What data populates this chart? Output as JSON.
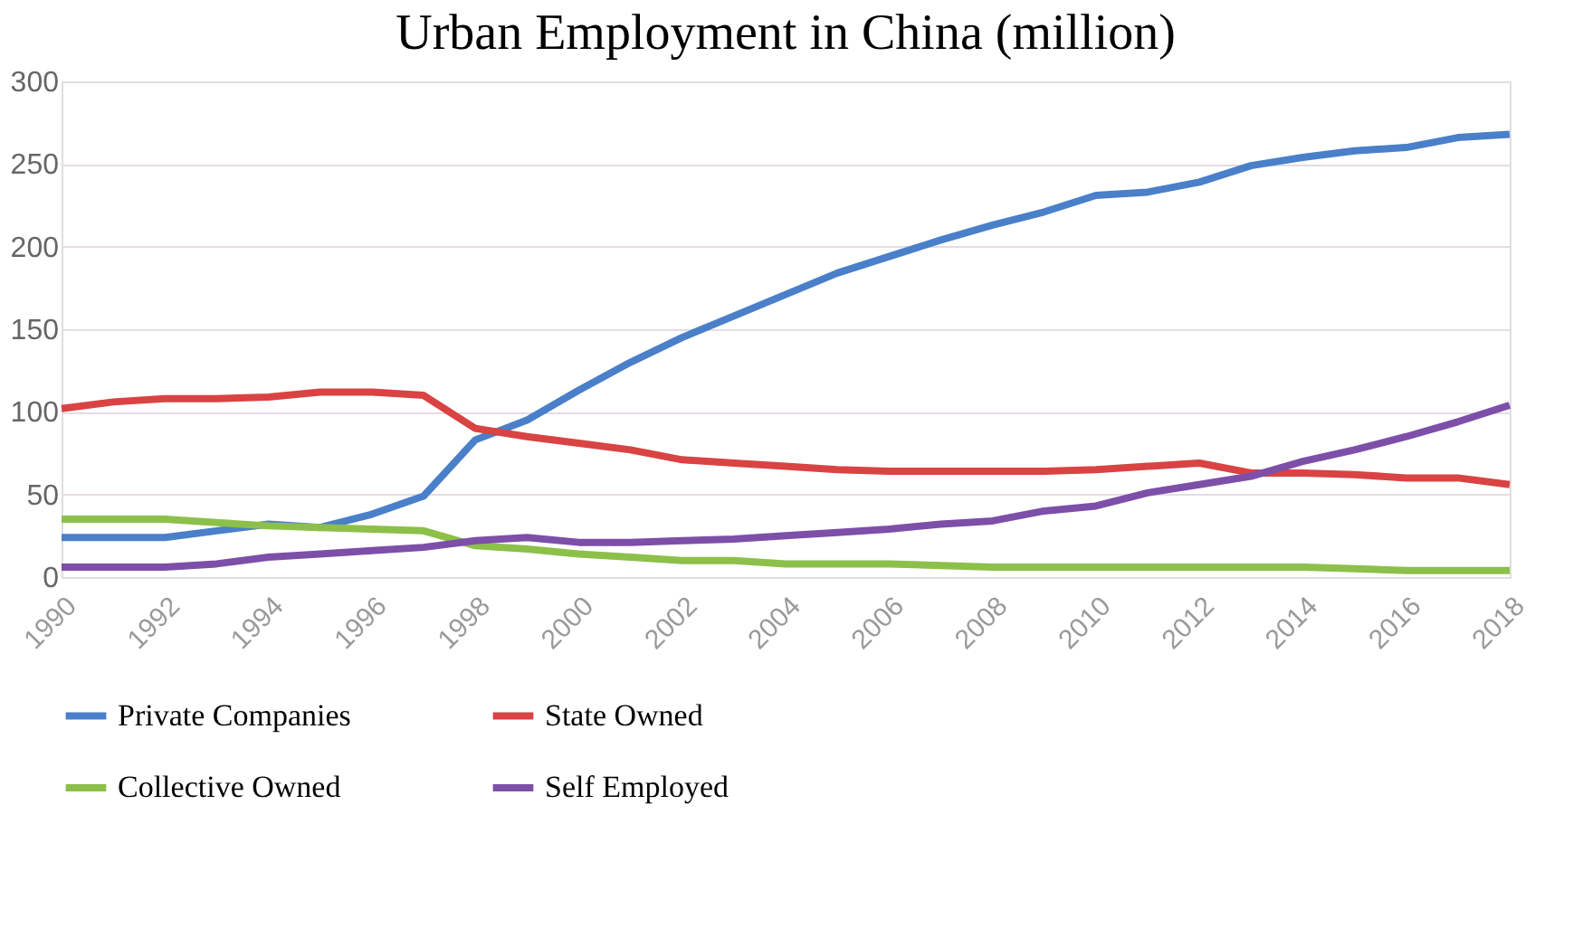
{
  "chart_data": {
    "type": "line",
    "title": "Urban Employment in China (million)",
    "x": [
      1990,
      1991,
      1992,
      1993,
      1994,
      1995,
      1996,
      1997,
      1998,
      1999,
      2000,
      2001,
      2002,
      2003,
      2004,
      2005,
      2006,
      2007,
      2008,
      2009,
      2010,
      2011,
      2012,
      2013,
      2014,
      2015,
      2016,
      2017,
      2018
    ],
    "series": [
      {
        "name": "Private Companies",
        "color": "#4a7fc9",
        "values": [
          24,
          24,
          24,
          28,
          32,
          30,
          38,
          49,
          83,
          95,
          113,
          130,
          145,
          158,
          171,
          184,
          194,
          204,
          213,
          221,
          231,
          233,
          239,
          249,
          254,
          258,
          260,
          266,
          268
        ]
      },
      {
        "name": "State Owned",
        "color": "#d94343",
        "values": [
          102,
          106,
          108,
          108,
          109,
          112,
          112,
          110,
          90,
          85,
          81,
          77,
          71,
          69,
          67,
          65,
          64,
          64,
          64,
          64,
          65,
          67,
          69,
          63,
          63,
          62,
          60,
          60,
          56
        ]
      },
      {
        "name": "Collective Owned",
        "color": "#8cc04a",
        "values": [
          35,
          35,
          35,
          33,
          31,
          30,
          29,
          28,
          19,
          17,
          14,
          12,
          10,
          10,
          8,
          8,
          8,
          7,
          6,
          6,
          6,
          6,
          6,
          6,
          6,
          5,
          4,
          4,
          4
        ]
      },
      {
        "name": "Self Employed",
        "color": "#7d4fa8",
        "values": [
          6,
          6,
          6,
          8,
          12,
          14,
          16,
          18,
          22,
          24,
          21,
          21,
          22,
          23,
          25,
          27,
          29,
          32,
          34,
          40,
          43,
          51,
          56,
          61,
          70,
          77,
          85,
          94,
          104
        ]
      }
    ],
    "xlim": [
      1990,
      2018
    ],
    "xticks": [
      1990,
      1992,
      1994,
      1996,
      1998,
      2000,
      2002,
      2004,
      2006,
      2008,
      2010,
      2012,
      2014,
      2016,
      2018
    ],
    "ylim": [
      0,
      300
    ],
    "yticks": [
      0,
      50,
      100,
      150,
      200,
      250,
      300
    ],
    "grid": "y",
    "legend": "bottom",
    "marker": "none",
    "line_style": "solid"
  }
}
